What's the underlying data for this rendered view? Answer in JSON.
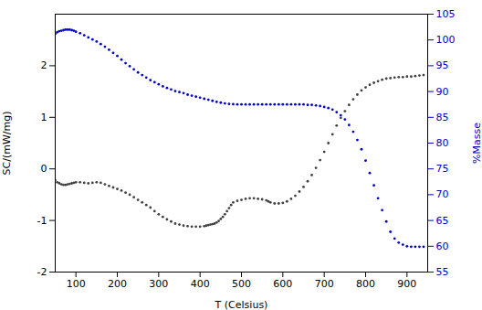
{
  "chart_data": {
    "type": "scatter",
    "xlabel": "T (Celsius)",
    "ylabel": "SC/(mW/mg)",
    "y2label": "%Masse",
    "xlim": [
      50,
      950
    ],
    "xticks": [
      100,
      200,
      300,
      400,
      500,
      600,
      700,
      800,
      900
    ],
    "ylim": [
      -2,
      3
    ],
    "yticks": [
      -2,
      -1,
      0,
      1,
      2
    ],
    "y2lim": [
      55,
      105
    ],
    "y2ticks": [
      55,
      60,
      65,
      70,
      75,
      80,
      85,
      90,
      95,
      100,
      105
    ],
    "y2color": "#0000cc",
    "series": [
      {
        "color": "#404040",
        "x": [
          50,
          55,
          60,
          65,
          70,
          75,
          80,
          85,
          90,
          95,
          100,
          110,
          120,
          130,
          140,
          150,
          160,
          170,
          180,
          190,
          200,
          210,
          220,
          230,
          240,
          250,
          260,
          270,
          280,
          290,
          300,
          310,
          320,
          330,
          340,
          350,
          360,
          370,
          380,
          390,
          400,
          410,
          415,
          420,
          425,
          430,
          435,
          440,
          445,
          450,
          455,
          460,
          465,
          470,
          475,
          480,
          490,
          500,
          510,
          520,
          530,
          540,
          550,
          560,
          565,
          570,
          580,
          590,
          600,
          610,
          620,
          630,
          640,
          650,
          660,
          670,
          680,
          690,
          700,
          710,
          720,
          730,
          740,
          750,
          760,
          770,
          780,
          790,
          800,
          810,
          820,
          830,
          840,
          850,
          860,
          870,
          880,
          890,
          900,
          910,
          920,
          930,
          940
        ],
        "values": [
          -0.22,
          -0.26,
          -0.28,
          -0.3,
          -0.31,
          -0.31,
          -0.3,
          -0.29,
          -0.28,
          -0.27,
          -0.26,
          -0.26,
          -0.27,
          -0.28,
          -0.27,
          -0.26,
          -0.27,
          -0.3,
          -0.33,
          -0.36,
          -0.39,
          -0.42,
          -0.46,
          -0.5,
          -0.55,
          -0.6,
          -0.65,
          -0.7,
          -0.75,
          -0.82,
          -0.88,
          -0.93,
          -0.98,
          -1.02,
          -1.06,
          -1.08,
          -1.1,
          -1.11,
          -1.12,
          -1.12,
          -1.12,
          -1.11,
          -1.1,
          -1.09,
          -1.08,
          -1.07,
          -1.06,
          -1.04,
          -1.01,
          -0.97,
          -0.93,
          -0.88,
          -0.82,
          -0.76,
          -0.7,
          -0.65,
          -0.62,
          -0.6,
          -0.58,
          -0.57,
          -0.57,
          -0.58,
          -0.59,
          -0.61,
          -0.63,
          -0.65,
          -0.67,
          -0.67,
          -0.66,
          -0.63,
          -0.58,
          -0.52,
          -0.44,
          -0.35,
          -0.24,
          -0.12,
          0.02,
          0.17,
          0.33,
          0.5,
          0.67,
          0.84,
          0.99,
          1.12,
          1.24,
          1.35,
          1.44,
          1.52,
          1.58,
          1.63,
          1.67,
          1.7,
          1.73,
          1.75,
          1.76,
          1.77,
          1.78,
          1.78,
          1.79,
          1.79,
          1.8,
          1.81,
          1.82
        ]
      },
      {
        "color": "#0000cc",
        "axis": "y2",
        "x": [
          50,
          55,
          60,
          65,
          70,
          75,
          80,
          85,
          90,
          95,
          100,
          110,
          120,
          130,
          140,
          150,
          160,
          170,
          180,
          190,
          200,
          210,
          220,
          230,
          240,
          250,
          260,
          270,
          280,
          290,
          300,
          310,
          320,
          330,
          340,
          350,
          360,
          370,
          380,
          390,
          400,
          410,
          420,
          430,
          440,
          450,
          460,
          470,
          480,
          490,
          500,
          510,
          520,
          530,
          540,
          550,
          560,
          570,
          580,
          590,
          600,
          610,
          620,
          630,
          640,
          650,
          660,
          670,
          680,
          690,
          700,
          710,
          720,
          730,
          740,
          750,
          760,
          770,
          780,
          790,
          800,
          810,
          820,
          830,
          840,
          850,
          860,
          870,
          880,
          890,
          900,
          910,
          920,
          930,
          940
        ],
        "values": [
          101.2,
          101.5,
          101.7,
          101.8,
          101.9,
          102.0,
          102.0,
          102.0,
          101.9,
          101.8,
          101.6,
          101.3,
          100.9,
          100.5,
          100.1,
          99.7,
          99.2,
          98.7,
          98.1,
          97.5,
          96.9,
          96.2,
          95.5,
          94.9,
          94.3,
          93.7,
          93.2,
          92.7,
          92.2,
          91.8,
          91.4,
          91.0,
          90.7,
          90.4,
          90.1,
          89.9,
          89.7,
          89.4,
          89.2,
          89.0,
          88.8,
          88.6,
          88.4,
          88.2,
          88.0,
          87.85,
          87.7,
          87.6,
          87.55,
          87.5,
          87.5,
          87.5,
          87.5,
          87.5,
          87.5,
          87.5,
          87.5,
          87.5,
          87.5,
          87.5,
          87.5,
          87.5,
          87.5,
          87.5,
          87.5,
          87.5,
          87.4,
          87.4,
          87.3,
          87.2,
          87.0,
          86.8,
          86.5,
          86.0,
          85.4,
          84.6,
          83.5,
          82.2,
          80.6,
          78.8,
          76.6,
          74.2,
          71.8,
          69.3,
          67.0,
          64.8,
          62.8,
          61.5,
          60.7,
          60.3,
          60.0,
          59.9,
          59.9,
          59.9,
          59.9
        ]
      }
    ]
  }
}
